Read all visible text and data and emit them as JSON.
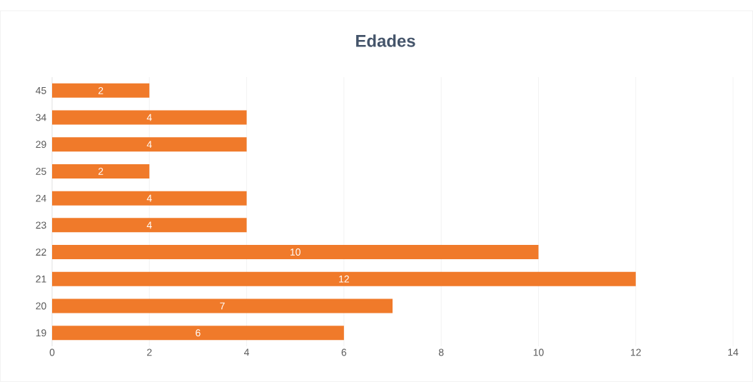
{
  "chart_data": {
    "type": "bar",
    "title": "Edades",
    "orientation": "horizontal",
    "categories": [
      "45",
      "34",
      "29",
      "25",
      "24",
      "23",
      "22",
      "21",
      "20",
      "19"
    ],
    "values": [
      2,
      4,
      4,
      2,
      4,
      4,
      10,
      12,
      7,
      6
    ],
    "color": "#f07a2a",
    "xlim": [
      0,
      14
    ],
    "xticks": [
      0,
      2,
      4,
      6,
      8,
      10,
      12,
      14
    ],
    "grid": "x",
    "data_labels": true
  }
}
